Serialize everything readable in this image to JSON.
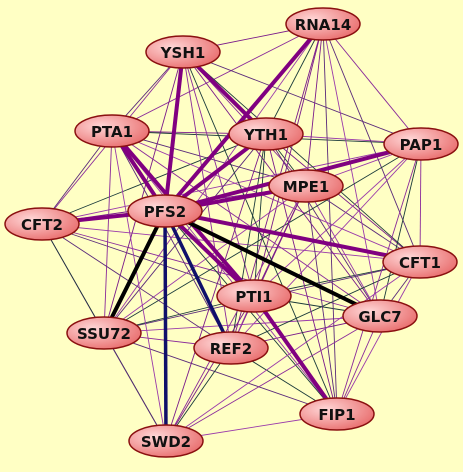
{
  "nodes": [
    {
      "label": "RNA14"
    },
    {
      "label": "YSH1"
    },
    {
      "label": "PTA1"
    },
    {
      "label": "YTH1"
    },
    {
      "label": "PAP1"
    },
    {
      "label": "MPE1"
    },
    {
      "label": "PFS2"
    },
    {
      "label": "CFT2"
    },
    {
      "label": "CFT1"
    },
    {
      "label": "PTI1"
    },
    {
      "label": "GLC7"
    },
    {
      "label": "SSU72"
    },
    {
      "label": "REF2"
    },
    {
      "label": "FIP1"
    },
    {
      "label": "SWD2"
    }
  ]
}
